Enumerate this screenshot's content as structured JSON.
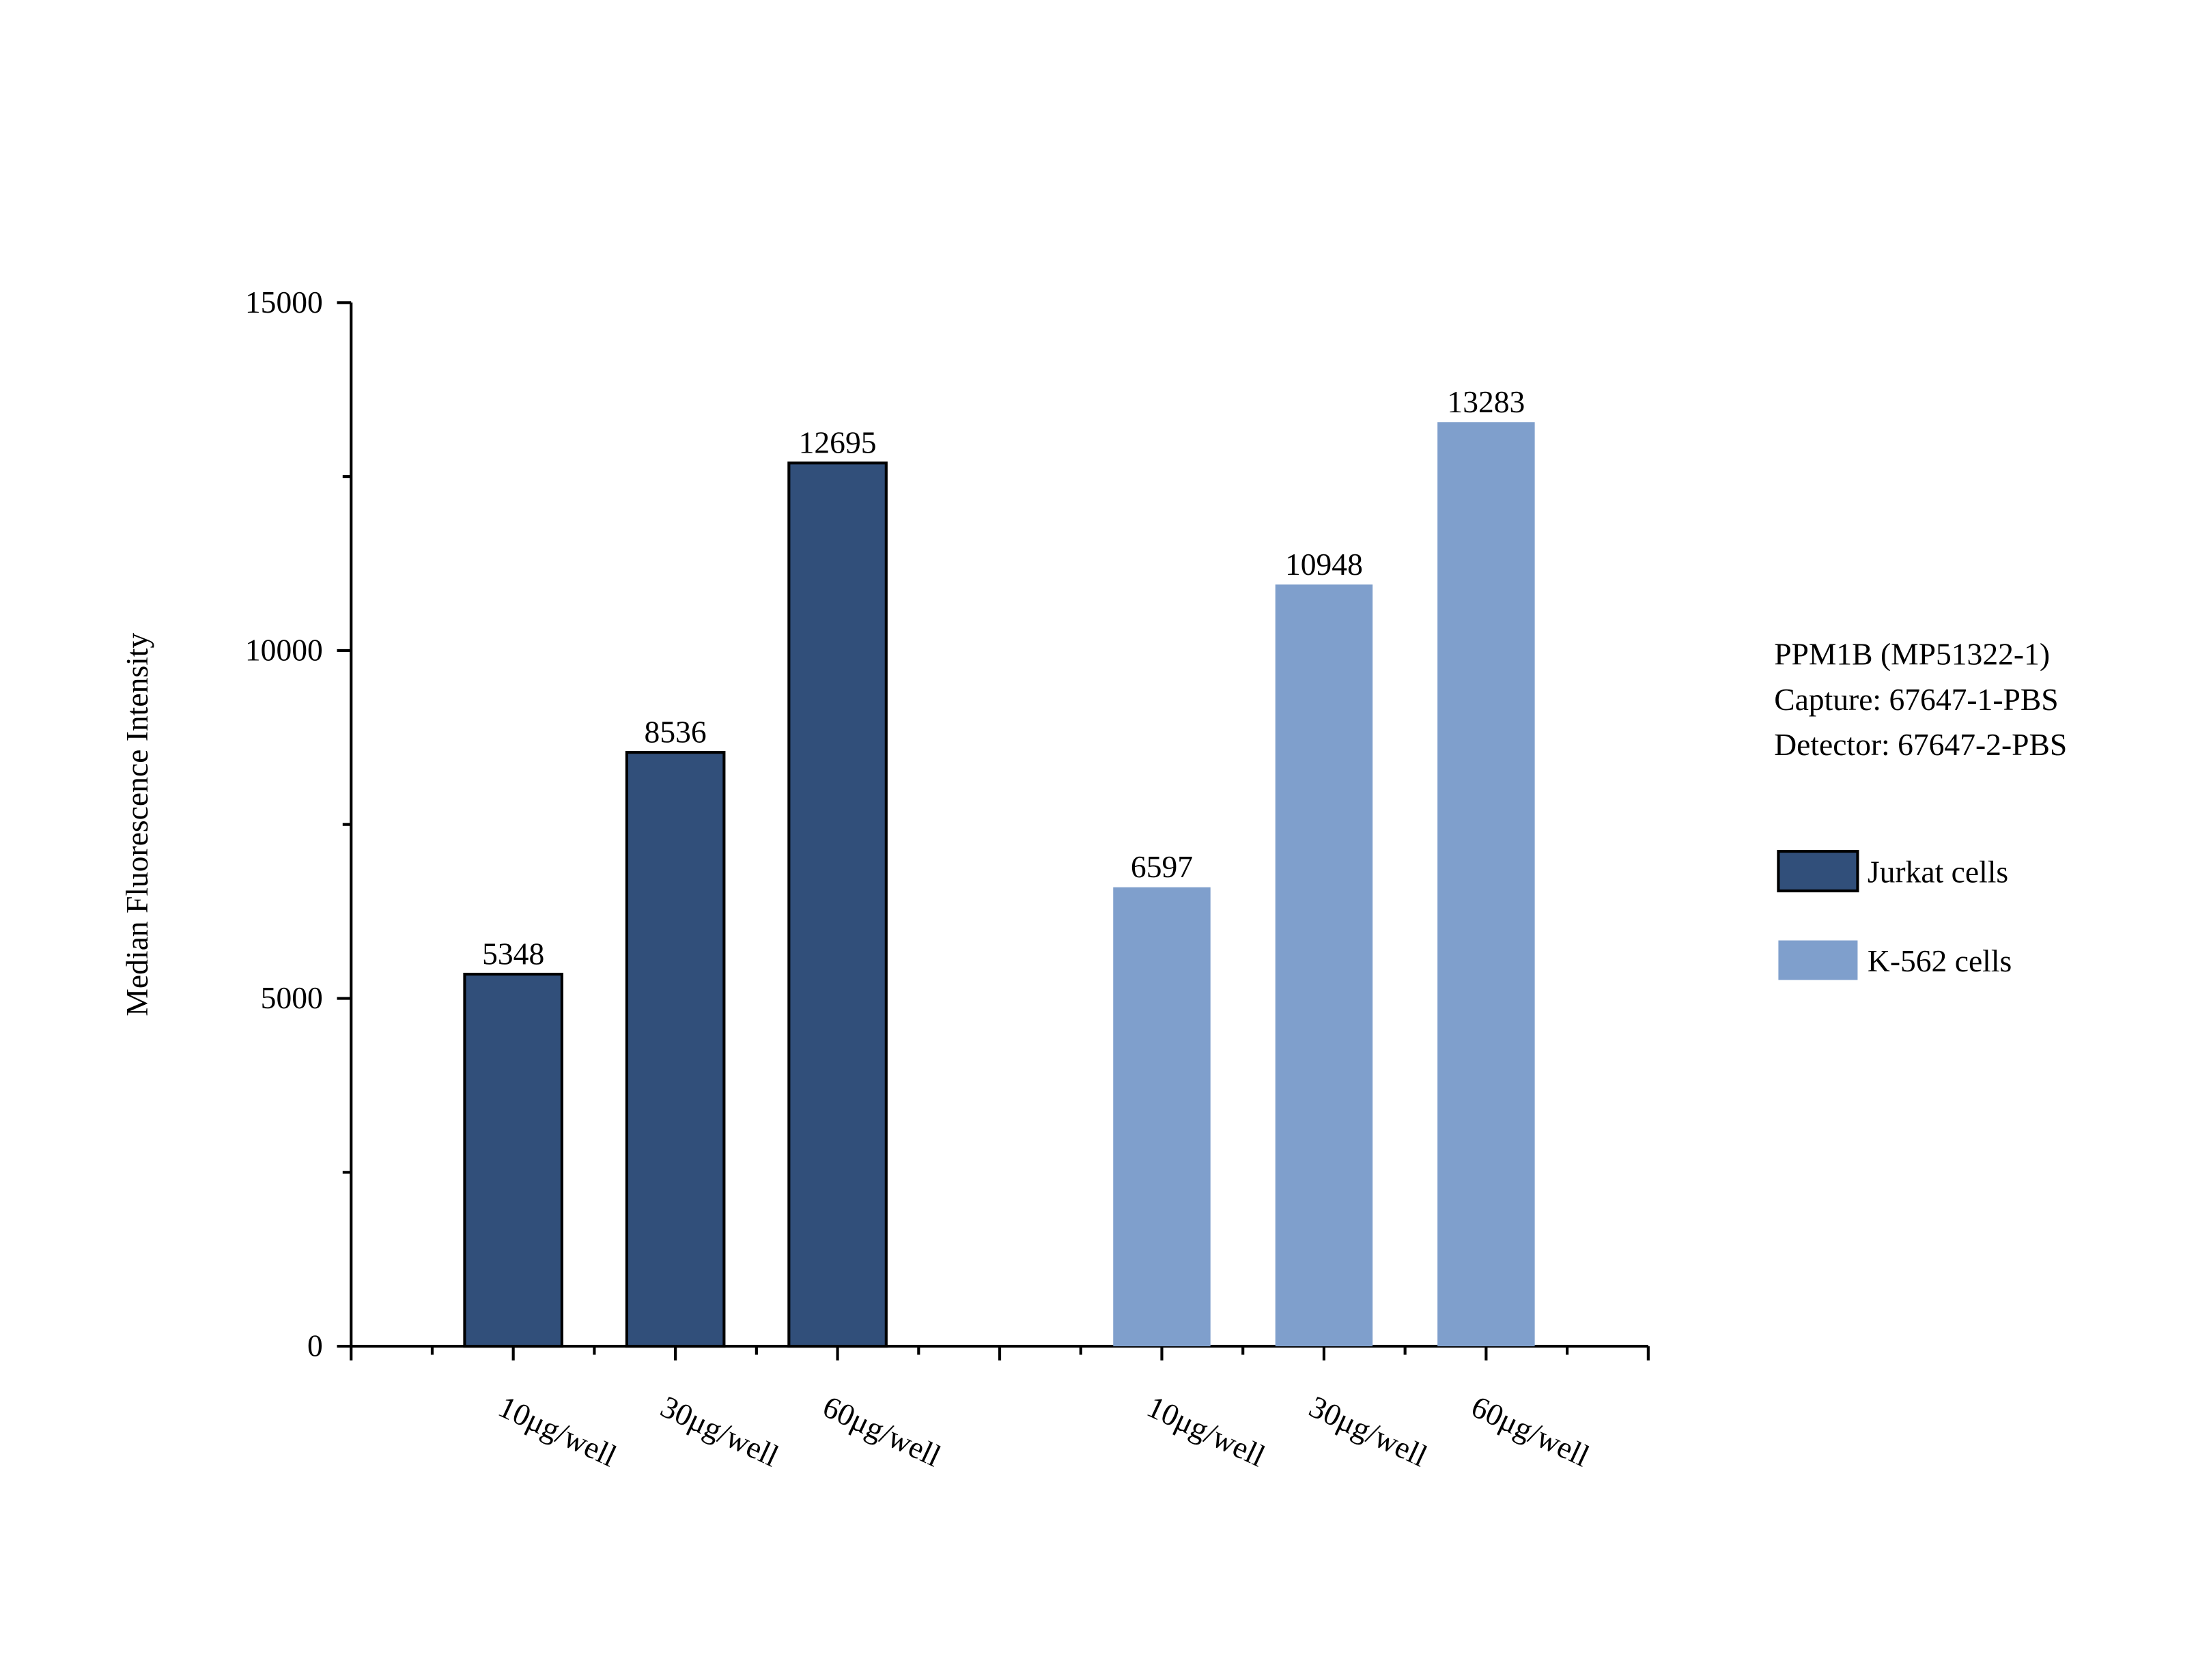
{
  "chart_data": {
    "type": "bar",
    "y_label": "Median Fluorescence Intensity",
    "categories": [
      "10μg/well",
      "30μg/well",
      "60μg/well",
      "10μg/well",
      "30μg/well",
      "60μg/well"
    ],
    "series": [
      {
        "name": "Jurkat cells",
        "color": "#314f7a",
        "values": [
          5348,
          8536,
          12695,
          null,
          null,
          null
        ]
      },
      {
        "name": "K-562 cells",
        "color": "#7f9fcc",
        "values": [
          null,
          null,
          null,
          6597,
          10948,
          13283
        ]
      }
    ],
    "ylim": [
      0,
      15000
    ],
    "yticks": [
      0,
      5000,
      10000,
      15000
    ],
    "annotations": [
      "PPM1B (MP51322-1)",
      "Capture: 67647-1-PBS",
      "Detector: 67647-2-PBS"
    ],
    "legend": "right"
  }
}
